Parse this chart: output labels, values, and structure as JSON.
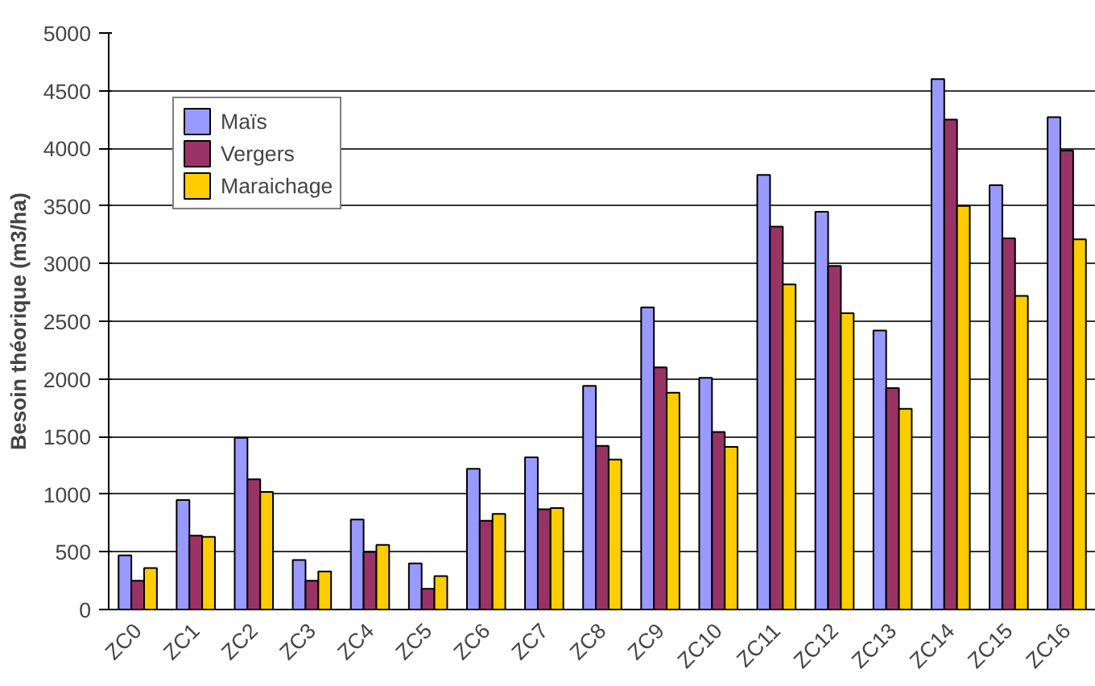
{
  "chart_data": {
    "type": "bar",
    "ylabel": "Besoin théorique (m3/ha)",
    "categories": [
      "ZC0",
      "ZC1",
      "ZC2",
      "ZC3",
      "ZC4",
      "ZC5",
      "ZC6",
      "ZC7",
      "ZC8",
      "ZC9",
      "ZC10",
      "ZC11",
      "ZC12",
      "ZC13",
      "ZC14",
      "ZC15",
      "ZC16"
    ],
    "series": [
      {
        "name": "Maïs",
        "color": "#9999ff",
        "values": [
          470,
          950,
          1490,
          430,
          780,
          400,
          1220,
          1320,
          1940,
          2620,
          2010,
          3770,
          3450,
          2420,
          4600,
          3680,
          4270
        ]
      },
      {
        "name": "Vergers",
        "color": "#993366",
        "values": [
          250,
          640,
          1130,
          250,
          500,
          180,
          770,
          870,
          1420,
          2100,
          1540,
          3320,
          2980,
          1920,
          4250,
          3220,
          3980
        ]
      },
      {
        "name": "Maraichage",
        "color": "#ffcc00",
        "values": [
          360,
          630,
          1020,
          330,
          560,
          290,
          830,
          880,
          1300,
          1880,
          1410,
          2820,
          2570,
          1740,
          3500,
          2720,
          3210
        ]
      }
    ],
    "ylim": [
      0,
      5000
    ],
    "yticks": [
      0,
      500,
      1000,
      1500,
      2000,
      2500,
      3000,
      3500,
      4000,
      4500,
      5000
    ],
    "grid": "y",
    "legend": "top left"
  }
}
